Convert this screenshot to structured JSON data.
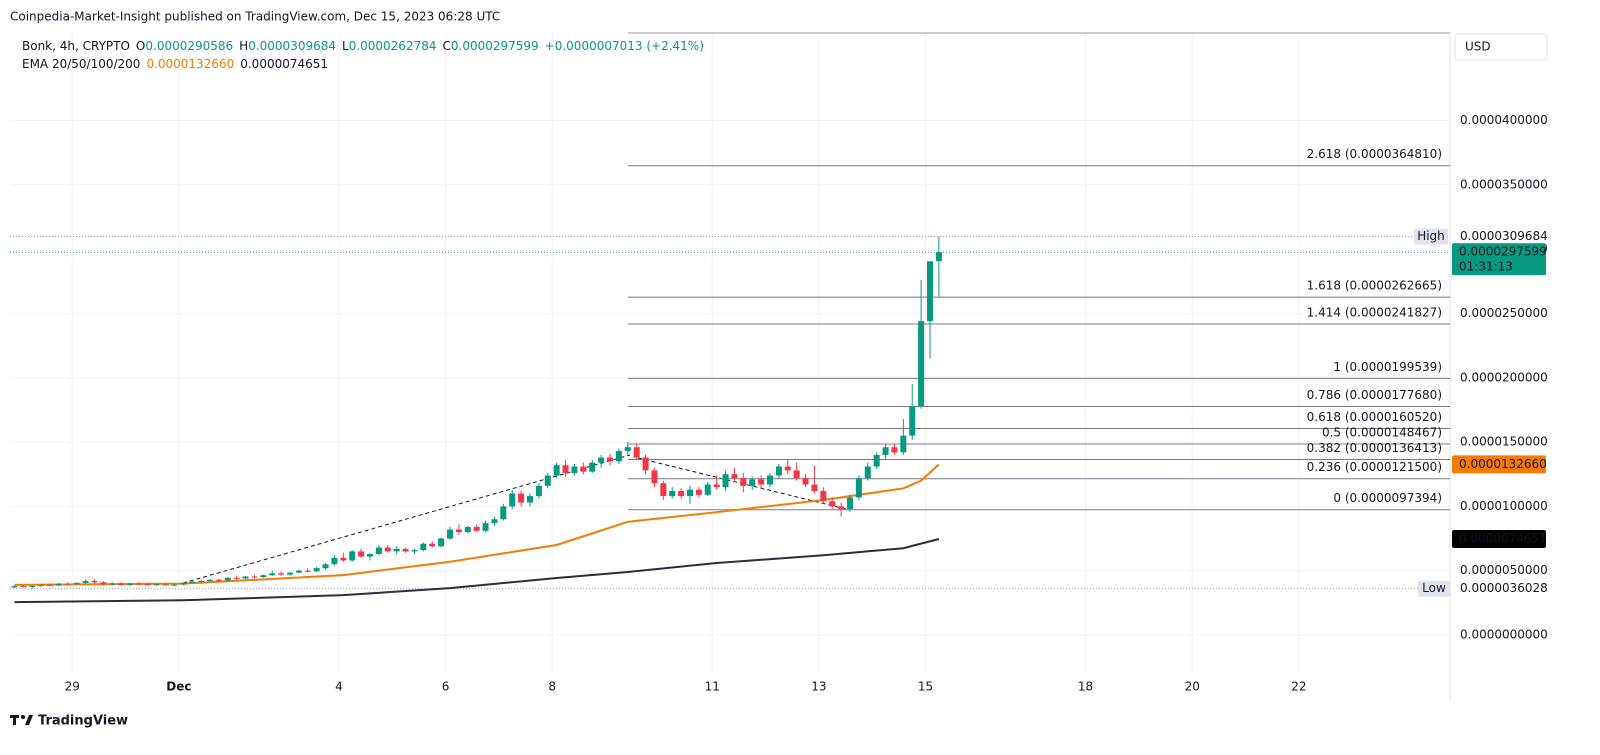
{
  "header": "Coinpedia-Market-Insight published on TradingView.com, Dec 15, 2023 06:28 UTC",
  "footer": "TradingView",
  "chart_data": {
    "type": "candlestick",
    "legend": {
      "symbol": "Bonk, 4h, CRYPTO",
      "o": "O",
      "h": "H",
      "l": "L",
      "c": "C",
      "change": "+0.0000007013 (+2.41%)"
    },
    "currency": "USD",
    "countdown": "01:31:13",
    "high_label": "High",
    "low_label": "Low",
    "up_color": "#089981",
    "down_color": "#f23645",
    "candles": [
      [
        3.7e-06,
        3.85e-06,
        3.65e-06,
        3.8e-06
      ],
      [
        3.8e-06,
        3.9e-06,
        3.7e-06,
        3.75e-06
      ],
      [
        3.75e-06,
        3.85e-06,
        3.6028e-06,
        3.82e-06
      ],
      [
        3.82e-06,
        3.95e-06,
        3.75e-06,
        3.9e-06
      ],
      [
        3.9e-06,
        4e-06,
        3.8e-06,
        3.85e-06
      ],
      [
        3.85e-06,
        4.05e-06,
        3.8e-06,
        4e-06
      ],
      [
        4e-06,
        4.1e-06,
        3.9e-06,
        3.95e-06
      ],
      [
        3.95e-06,
        4.1e-06,
        3.9e-06,
        4.05e-06
      ],
      [
        4.05e-06,
        4.3e-06,
        4e-06,
        4.2e-06
      ],
      [
        4.2e-06,
        4.35e-06,
        4e-06,
        4.1e-06
      ],
      [
        4.1e-06,
        4.2e-06,
        3.9e-06,
        3.95e-06
      ],
      [
        3.95e-06,
        4.1e-06,
        3.85e-06,
        4e-06
      ],
      [
        4e-06,
        4.1e-06,
        3.85e-06,
        3.9e-06
      ],
      [
        3.9e-06,
        4.05e-06,
        3.8e-06,
        4e-06
      ],
      [
        4e-06,
        4.1e-06,
        3.9e-06,
        3.95e-06
      ],
      [
        3.95e-06,
        4.05e-06,
        3.85e-06,
        3.9e-06
      ],
      [
        3.9e-06,
        4e-06,
        3.8e-06,
        3.95e-06
      ],
      [
        3.95e-06,
        4.05e-06,
        3.85e-06,
        3.9e-06
      ],
      [
        3.9e-06,
        4e-06,
        3.8e-06,
        3.92e-06
      ],
      [
        3.92e-06,
        4.1e-06,
        3.85e-06,
        4.05e-06
      ],
      [
        4.05e-06,
        4.2e-06,
        4e-06,
        4.15e-06
      ],
      [
        4.15e-06,
        4.3e-06,
        4.05e-06,
        4.2e-06
      ],
      [
        4.2e-06,
        4.35e-06,
        4.1e-06,
        4.3e-06
      ],
      [
        4.3e-06,
        4.4e-06,
        4.15e-06,
        4.25e-06
      ],
      [
        4.25e-06,
        4.5e-06,
        4.2e-06,
        4.45e-06
      ],
      [
        4.45e-06,
        4.6e-06,
        4.3e-06,
        4.4e-06
      ],
      [
        4.4e-06,
        4.6e-06,
        4.35e-06,
        4.55e-06
      ],
      [
        4.55e-06,
        4.7e-06,
        4.4e-06,
        4.5e-06
      ],
      [
        4.5e-06,
        4.7e-06,
        4.45e-06,
        4.65e-06
      ],
      [
        4.65e-06,
        5e-06,
        4.6e-06,
        4.8e-06
      ],
      [
        4.8e-06,
        4.95e-06,
        4.6e-06,
        4.7e-06
      ],
      [
        4.7e-06,
        4.9e-06,
        4.6e-06,
        4.85e-06
      ],
      [
        4.85e-06,
        5.1e-06,
        4.8e-06,
        5e-06
      ],
      [
        5e-06,
        5.2e-06,
        4.85e-06,
        4.95e-06
      ],
      [
        4.95e-06,
        5.3e-06,
        4.9e-06,
        5.2e-06
      ],
      [
        5.2e-06,
        5.6e-06,
        5.1e-06,
        5.5e-06
      ],
      [
        5.5e-06,
        6.2e-06,
        5.4e-06,
        6e-06
      ],
      [
        6e-06,
        6.4e-06,
        5.7e-06,
        5.8e-06
      ],
      [
        5.8e-06,
        6.6e-06,
        5.7e-06,
        6.5e-06
      ],
      [
        6.5e-06,
        6.7e-06,
        6e-06,
        6.1e-06
      ],
      [
        6.1e-06,
        6.4e-06,
        5.8e-06,
        6.3e-06
      ],
      [
        6.3e-06,
        7e-06,
        6.2e-06,
        6.8e-06
      ],
      [
        6.8e-06,
        7e-06,
        6.4e-06,
        6.5e-06
      ],
      [
        6.5e-06,
        6.9e-06,
        6.3e-06,
        6.7e-06
      ],
      [
        6.7e-06,
        6.8e-06,
        6.4e-06,
        6.5e-06
      ],
      [
        6.5e-06,
        6.7e-06,
        6.3e-06,
        6.6e-06
      ],
      [
        6.6e-06,
        7.2e-06,
        6.5e-06,
        7.1e-06
      ],
      [
        7.1e-06,
        7.3e-06,
        6.8e-06,
        6.9e-06
      ],
      [
        6.9e-06,
        7.6e-06,
        6.8e-06,
        7.5e-06
      ],
      [
        7.5e-06,
        8.4e-06,
        7.4e-06,
        8.2e-06
      ],
      [
        8.2e-06,
        8.6e-06,
        7.8e-06,
        8e-06
      ],
      [
        8e-06,
        8.5e-06,
        7.9e-06,
        8.4e-06
      ],
      [
        8.4e-06,
        8.6e-06,
        8e-06,
        8.1e-06
      ],
      [
        8.1e-06,
        8.9e-06,
        8e-06,
        8.7e-06
      ],
      [
        8.7e-06,
        9.2e-06,
        8.5e-06,
        9e-06
      ],
      [
        9e-06,
        1.02e-05,
        8.9e-06,
        1e-05
      ],
      [
        1e-05,
        1.13e-05,
        9.8e-06,
        1.1e-05
      ],
      [
        1.1e-05,
        1.12e-05,
        1e-05,
        1.03e-05
      ],
      [
        1.03e-05,
        1.1e-05,
        1e-05,
        1.08e-05
      ],
      [
        1.08e-05,
        1.18e-05,
        1.06e-05,
        1.16e-05
      ],
      [
        1.16e-05,
        1.26e-05,
        1.14e-05,
        1.24e-05
      ],
      [
        1.24e-05,
        1.34e-05,
        1.22e-05,
        1.32e-05
      ],
      [
        1.32e-05,
        1.36e-05,
        1.23e-05,
        1.26e-05
      ],
      [
        1.26e-05,
        1.33e-05,
        1.24e-05,
        1.31e-05
      ],
      [
        1.31e-05,
        1.34e-05,
        1.25e-05,
        1.27e-05
      ],
      [
        1.27e-05,
        1.36e-05,
        1.26e-05,
        1.34e-05
      ],
      [
        1.34e-05,
        1.4e-05,
        1.3e-05,
        1.38e-05
      ],
      [
        1.38e-05,
        1.41e-05,
        1.32e-05,
        1.35e-05
      ],
      [
        1.35e-05,
        1.45e-05,
        1.33e-05,
        1.43e-05
      ],
      [
        1.43e-05,
        1.5e-05,
        1.4e-05,
        1.46e-05
      ],
      [
        1.46e-05,
        1.49e-05,
        1.36e-05,
        1.38e-05
      ],
      [
        1.38e-05,
        1.4e-05,
        1.25e-05,
        1.28e-05
      ],
      [
        1.28e-05,
        1.3e-05,
        1.15e-05,
        1.18e-05
      ],
      [
        1.18e-05,
        1.2e-05,
        1.05e-05,
        1.08e-05
      ],
      [
        1.08e-05,
        1.15e-05,
        1.06e-05,
        1.12e-05
      ],
      [
        1.12e-05,
        1.14e-05,
        1.06e-05,
        1.08e-05
      ],
      [
        1.08e-05,
        1.16e-05,
        1.02e-05,
        1.13e-05
      ],
      [
        1.13e-05,
        1.15e-05,
        1.07e-05,
        1.09e-05
      ],
      [
        1.09e-05,
        1.19e-05,
        1.08e-05,
        1.17e-05
      ],
      [
        1.17e-05,
        1.24e-05,
        1.13e-05,
        1.15e-05
      ],
      [
        1.15e-05,
        1.28e-05,
        1.12e-05,
        1.25e-05
      ],
      [
        1.25e-05,
        1.3e-05,
        1.2e-05,
        1.22e-05
      ],
      [
        1.22e-05,
        1.26e-05,
        1.11e-05,
        1.16e-05
      ],
      [
        1.16e-05,
        1.23e-05,
        1.13e-05,
        1.21e-05
      ],
      [
        1.21e-05,
        1.24e-05,
        1.14e-05,
        1.17e-05
      ],
      [
        1.17e-05,
        1.26e-05,
        1.15e-05,
        1.24e-05
      ],
      [
        1.24e-05,
        1.33e-05,
        1.22e-05,
        1.31e-05
      ],
      [
        1.31e-05,
        1.36e-05,
        1.25e-05,
        1.28e-05
      ],
      [
        1.28e-05,
        1.34e-05,
        1.2e-05,
        1.22e-05
      ],
      [
        1.22e-05,
        1.25e-05,
        1.15e-05,
        1.17e-05
      ],
      [
        1.17e-05,
        1.32e-05,
        1.1e-05,
        1.12e-05
      ],
      [
        1.12e-05,
        1.15e-05,
        1.02e-05,
        1.04e-05
      ],
      [
        1.04e-05,
        1.07e-05,
        9.8e-06,
        1e-05
      ],
      [
        1e-05,
        1.03e-05,
        9.2e-06,
        9.8e-06
      ],
      [
        9.8e-06,
        1.09e-05,
        9.6e-06,
        1.07e-05
      ],
      [
        1.07e-05,
        1.24e-05,
        1.05e-05,
        1.22e-05
      ],
      [
        1.22e-05,
        1.34e-05,
        1.2e-05,
        1.31e-05
      ],
      [
        1.31e-05,
        1.42e-05,
        1.29e-05,
        1.4e-05
      ],
      [
        1.4e-05,
        1.49e-05,
        1.37e-05,
        1.46e-05
      ],
      [
        1.46e-05,
        1.49e-05,
        1.4e-05,
        1.42e-05
      ],
      [
        1.42e-05,
        1.68e-05,
        1.4e-05,
        1.55e-05
      ],
      [
        1.55e-05,
        1.95e-05,
        1.52e-05,
        1.78e-05
      ],
      [
        1.78e-05,
        2.76e-05,
        1.76e-05,
        2.44e-05
      ],
      [
        2.44e-05,
        2.86e-05,
        2.15e-05,
        2.90586e-05
      ],
      [
        2.90586e-05,
        3.09684e-05,
        2.62784e-05,
        2.97599e-05
      ]
    ],
    "ema": {
      "title": "EMA 20/50/100/200",
      "lines": [
        {
          "color": "#f57c00",
          "x": [
            0,
            19,
            37,
            49,
            61,
            69,
            79,
            91,
            100,
            102,
            104
          ],
          "values": [
            3.9e-06,
            4e-06,
            4.66e-06,
            5.7e-06,
            7e-06,
            8.8e-06,
            9.55e-06,
            1.05e-05,
            1.14e-05,
            1.2e-05,
            1.3266e-05
          ],
          "last_label": "0.0000132660"
        },
        {
          "color": "#2a2e39",
          "x": [
            0,
            19,
            37,
            49,
            61,
            69,
            79,
            91,
            100,
            104
          ],
          "values": [
            2.56e-06,
            2.7e-06,
            3.1e-06,
            3.65e-06,
            4.43e-06,
            4.9e-06,
            5.6e-06,
            6.2e-06,
            6.75e-06,
            7.4651e-06
          ]
        }
      ]
    },
    "fib_levels": [
      {
        "label": "2.618 (0.0000364810)",
        "value": 3.6481e-05
      },
      {
        "label": "1.618 (0.0000262665)",
        "value": 2.62665e-05
      },
      {
        "label": "1.414 (0.0000241827)",
        "value": 2.41827e-05
      },
      {
        "label": "1 (0.0000199539)",
        "value": 1.99539e-05
      },
      {
        "label": "0.786 (0.0000177680)",
        "value": 1.7768e-05
      },
      {
        "label": "0.618 (0.0000160520)",
        "value": 1.6052e-05
      },
      {
        "label": "0.5 (0.0000148467)",
        "value": 1.48467e-05
      },
      {
        "label": "0.382 (0.0000136413)",
        "value": 1.36413e-05
      },
      {
        "label": "0.236 (0.0000121500)",
        "value": 1.215e-05
      },
      {
        "label": "0 (0.0000097394)",
        "value": 9.7394e-06
      }
    ],
    "xlim": [
      0,
      162
    ],
    "xticks": [
      {
        "value": 7,
        "label": "29"
      },
      {
        "value": 19,
        "label": "Dec"
      },
      {
        "value": 37,
        "label": "4"
      },
      {
        "value": 49,
        "label": "6"
      },
      {
        "value": 61,
        "label": "8"
      },
      {
        "value": 79,
        "label": "11"
      },
      {
        "value": 91,
        "label": "13"
      },
      {
        "value": 103,
        "label": "15"
      },
      {
        "value": 121,
        "label": "18"
      },
      {
        "value": 133,
        "label": "20"
      },
      {
        "value": 145,
        "label": "22"
      }
    ],
    "ylim": [
      -5.05e-06,
      4.68e-05
    ],
    "yticks": [
      {
        "value": 0,
        "label": "0.0000000000"
      },
      {
        "value": 5e-06,
        "label": "0.0000050000"
      },
      {
        "value": 1e-05,
        "label": "0.0000100000"
      },
      {
        "value": 1.5e-05,
        "label": "0.0000150000"
      },
      {
        "value": 2e-05,
        "label": "0.0000200000"
      },
      {
        "value": 2.5e-05,
        "label": "0.0000250000"
      },
      {
        "value": 3e-05,
        "label": "0.0000300000"
      },
      {
        "value": 3.5e-05,
        "label": "0.0000350000"
      },
      {
        "value": 4e-05,
        "label": "0.0000400000"
      }
    ],
    "grid": true
  }
}
